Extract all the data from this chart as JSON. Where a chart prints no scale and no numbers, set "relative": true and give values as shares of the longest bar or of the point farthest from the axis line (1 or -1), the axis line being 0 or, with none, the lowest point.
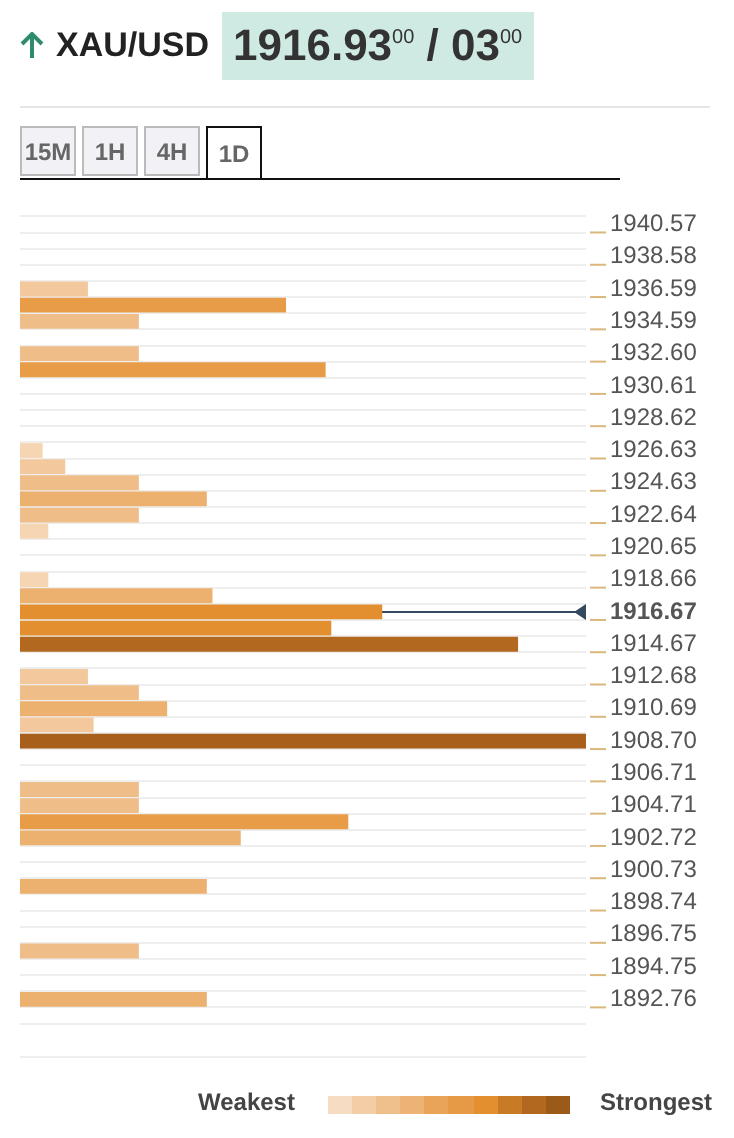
{
  "chart_data": {
    "type": "bar",
    "orientation": "horizontal",
    "relative": true,
    "title": "XAU/USD",
    "subtitle": "1916.93$^{00}$ / 03$^{00}$",
    "categories": [
      "1940.57",
      null,
      "1938.58",
      null,
      "1936.59",
      null,
      "1934.59",
      null,
      "1932.60",
      null,
      "1930.61",
      null,
      "1928.62",
      null,
      "1926.63",
      null,
      "1924.63",
      null,
      "1922.64",
      null,
      "1920.65",
      null,
      "1918.66",
      null,
      "1916.67",
      null,
      "1914.67",
      null,
      "1912.68",
      null,
      "1910.69",
      null,
      "1908.70",
      null,
      "1906.71",
      null,
      "1904.71",
      null,
      "1902.72",
      null,
      "1900.73",
      null,
      "1898.74",
      null,
      "1896.75",
      null,
      "1894.75",
      null,
      "1892.76",
      null
    ],
    "values": [
      null,
      null,
      null,
      null,
      0.12,
      0.47,
      0.21,
      null,
      0.21,
      0.54,
      null,
      null,
      null,
      null,
      0.04,
      0.08,
      0.21,
      0.33,
      0.21,
      0.05,
      null,
      null,
      0.05,
      0.34,
      0.64,
      0.55,
      0.88,
      null,
      0.12,
      0.21,
      0.26,
      0.13,
      1,
      null,
      null,
      0.21,
      0.21,
      0.58,
      0.39,
      null,
      null,
      0.33,
      null,
      null,
      null,
      0.21,
      null,
      null,
      0.33,
      null
    ],
    "colors": [
      null,
      null,
      null,
      null,
      "#f3c89c",
      "#e89c48",
      "#efbd87",
      null,
      "#efbd87",
      "#e89c48",
      null,
      null,
      null,
      null,
      "#f6d5b3",
      "#f3c89c",
      "#efbd87",
      "#ecb06f",
      "#efbd87",
      "#f6d5b3",
      null,
      null,
      "#f6d5b3",
      "#ecb06f",
      "#e38f2f",
      "#e38f2f",
      "#b3681f",
      null,
      "#f3c89c",
      "#efbd87",
      "#ecb06f",
      "#f3c89c",
      "#a85f1c",
      null,
      null,
      "#efbd87",
      "#efbd87",
      "#e89c48",
      "#ecb06f",
      null,
      null,
      "#ecb06f",
      null,
      null,
      null,
      "#efbd87",
      null,
      null,
      "#ecb06f",
      null
    ],
    "grid": true,
    "ref_lines": [
      {
        "axis": "y",
        "value": "1916.67",
        "color": "#34495e"
      }
    ],
    "annotations": [
      "15M",
      "1H",
      "4H",
      "1D",
      "Weakest",
      "Strongest"
    ]
  }
}
